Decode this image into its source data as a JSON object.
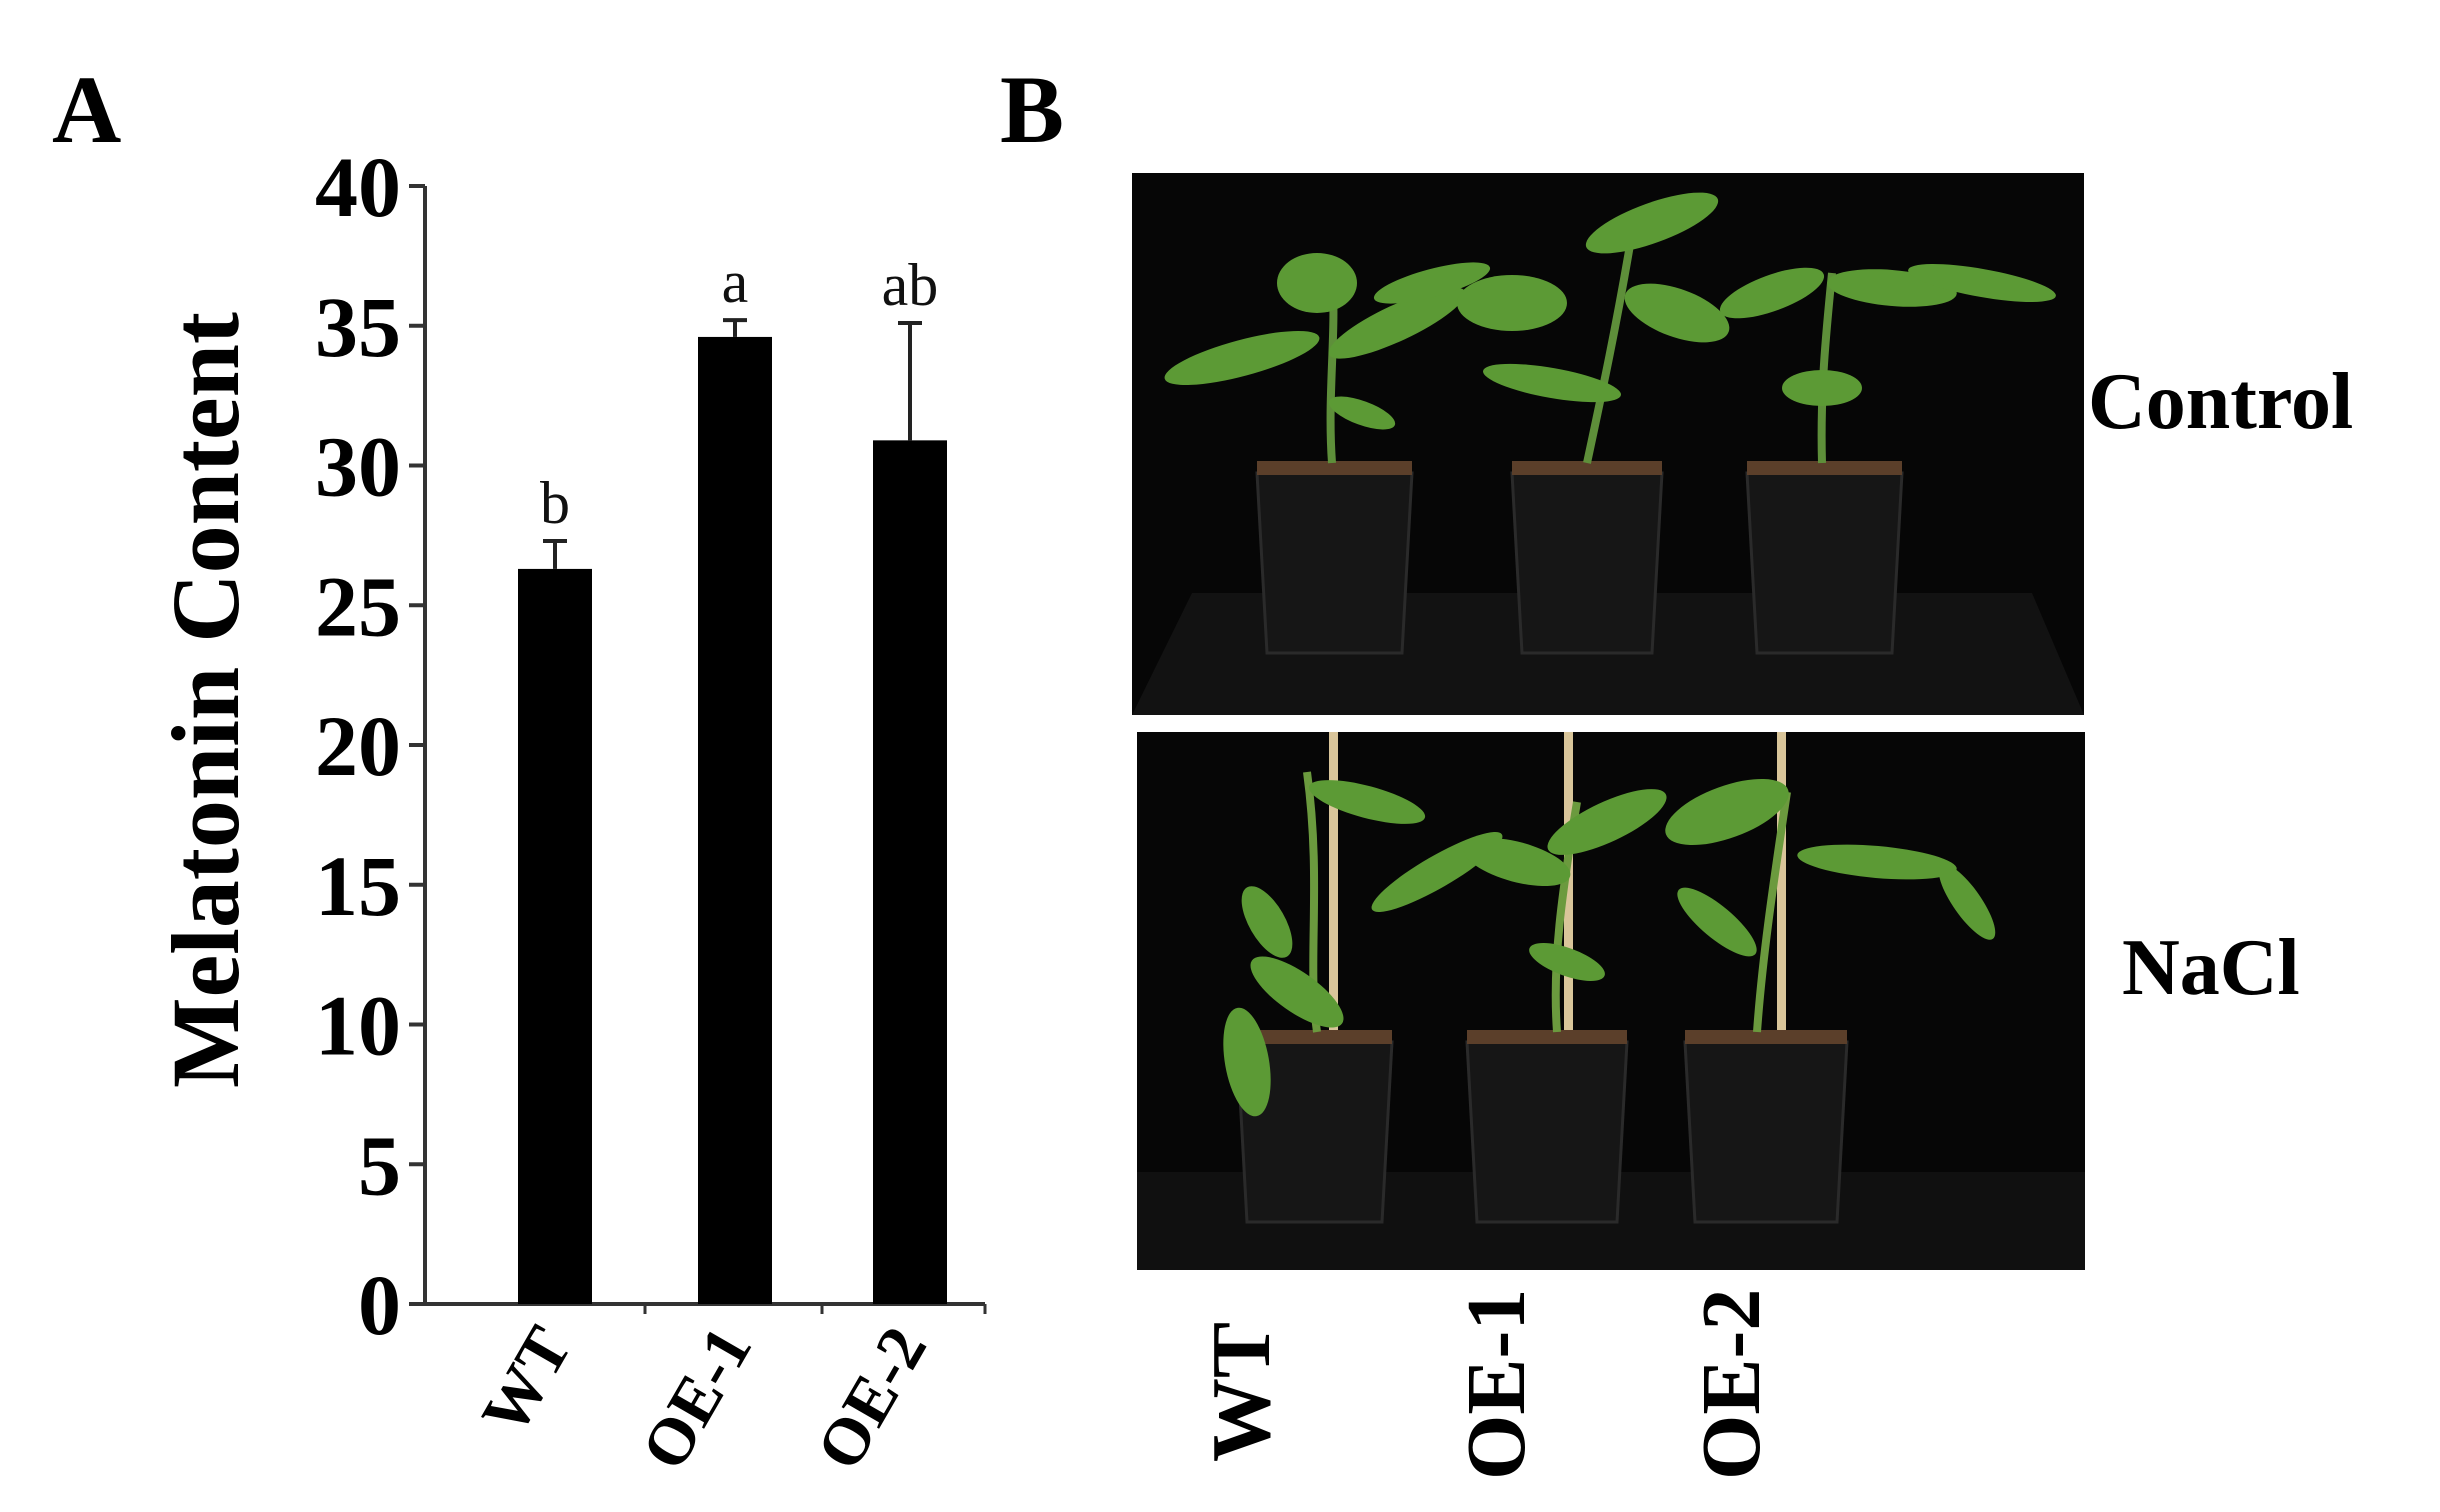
{
  "panels": {
    "a_letter": "A",
    "b_letter": "B"
  },
  "chart_data": {
    "type": "bar",
    "categories": [
      "WT",
      "OE-1",
      "OE-2"
    ],
    "values": [
      26.3,
      34.6,
      30.9
    ],
    "error_upper": [
      27.3,
      35.2,
      35.1
    ],
    "significance_letters": [
      "b",
      "a",
      "ab"
    ],
    "ylabel": "Melatonin Content",
    "xlabel": "",
    "title": "",
    "ylim": [
      0,
      40
    ],
    "yticks": [
      0,
      5,
      10,
      15,
      20,
      25,
      30,
      35,
      40
    ],
    "bar_color": "#000000",
    "grid": false
  },
  "photos": {
    "rows": [
      "Control",
      "NaCl"
    ],
    "columns": [
      "WT",
      "OE-1",
      "OE-2"
    ]
  }
}
